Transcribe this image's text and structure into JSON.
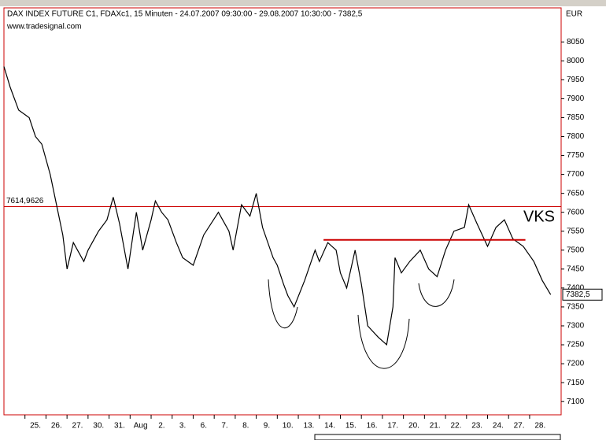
{
  "chart_data": {
    "type": "line",
    "title": "DAX INDEX FUTURE C1, FDAXc1, 15 Minuten - 24.07.2007 09:30:00 - 29.08.2007 10:30:00 - 7382,5",
    "subtitle": "www.tradesignal.com",
    "y_axis_label": "EUR",
    "color": "#000000",
    "x": [
      0,
      0.3,
      0.7,
      1.2,
      1.5,
      1.8,
      2.2,
      2.5,
      2.8,
      3.0,
      3.3,
      3.5,
      3.8,
      4.0,
      4.5,
      4.9,
      5.2,
      5.5,
      5.9,
      6.3,
      6.6,
      7.0,
      7.2,
      7.5,
      7.8,
      8.2,
      8.5,
      9.0,
      9.5,
      10.2,
      10.7,
      10.9,
      11.3,
      11.7,
      12.0,
      12.3,
      12.8,
      13.0,
      13.3,
      13.5,
      13.8,
      14.3,
      14.8,
      15.0,
      15.4,
      15.8,
      16.0,
      16.3,
      16.7,
      17.0,
      17.3,
      17.8,
      18.2,
      18.5,
      18.6,
      18.9,
      19.3,
      19.8,
      20.2,
      20.6,
      21.0,
      21.4,
      21.9,
      22.1,
      22.5,
      23.0,
      23.4,
      23.8,
      24.2,
      24.7,
      25.2,
      25.6,
      26.0
    ],
    "values": [
      7985,
      7930,
      7870,
      7850,
      7800,
      7780,
      7700,
      7620,
      7540,
      7450,
      7520,
      7500,
      7470,
      7500,
      7550,
      7580,
      7640,
      7570,
      7450,
      7600,
      7500,
      7580,
      7630,
      7600,
      7580,
      7520,
      7480,
      7460,
      7540,
      7600,
      7550,
      7500,
      7620,
      7590,
      7650,
      7560,
      7480,
      7460,
      7410,
      7380,
      7350,
      7420,
      7500,
      7470,
      7520,
      7500,
      7440,
      7400,
      7500,
      7410,
      7300,
      7270,
      7250,
      7350,
      7480,
      7440,
      7470,
      7500,
      7450,
      7430,
      7500,
      7550,
      7560,
      7620,
      7570,
      7510,
      7560,
      7580,
      7530,
      7510,
      7470,
      7420,
      7382.5
    ],
    "xlim": [
      0,
      26.2
    ],
    "xticks": [
      {
        "value": 1,
        "label": "25."
      },
      {
        "value": 2,
        "label": "26."
      },
      {
        "value": 3,
        "label": "27."
      },
      {
        "value": 4,
        "label": "30."
      },
      {
        "value": 5,
        "label": "31."
      },
      {
        "value": 6,
        "label": "Aug"
      },
      {
        "value": 7,
        "label": "2."
      },
      {
        "value": 8,
        "label": "3."
      },
      {
        "value": 9,
        "label": "6."
      },
      {
        "value": 10,
        "label": "7."
      },
      {
        "value": 11,
        "label": "8."
      },
      {
        "value": 12,
        "label": "9."
      },
      {
        "value": 13,
        "label": "10."
      },
      {
        "value": 14,
        "label": "13."
      },
      {
        "value": 15,
        "label": "14."
      },
      {
        "value": 16,
        "label": "15."
      },
      {
        "value": 17,
        "label": "16."
      },
      {
        "value": 18,
        "label": "17."
      },
      {
        "value": 19,
        "label": "20."
      },
      {
        "value": 20,
        "label": "21."
      },
      {
        "value": 21,
        "label": "22."
      },
      {
        "value": 22,
        "label": "23."
      },
      {
        "value": 23,
        "label": "24."
      },
      {
        "value": 24,
        "label": "27."
      },
      {
        "value": 25,
        "label": "28."
      }
    ],
    "ylim": [
      7065,
      8140
    ],
    "yticks": [
      7100,
      7150,
      7200,
      7250,
      7300,
      7350,
      7400,
      7450,
      7500,
      7550,
      7600,
      7650,
      7700,
      7750,
      7800,
      7850,
      7900,
      7950,
      8000,
      8050
    ],
    "last_price": {
      "value": 7382.5,
      "label": "7382,5"
    },
    "horizontal_line": {
      "value": 7614.9626,
      "label": "7614,9626",
      "color": "#cc0000"
    },
    "resistance_line": {
      "value": 7527,
      "x": [
        15.2,
        24.8
      ],
      "color": "#cc0000"
    },
    "annotation": "VKS"
  }
}
